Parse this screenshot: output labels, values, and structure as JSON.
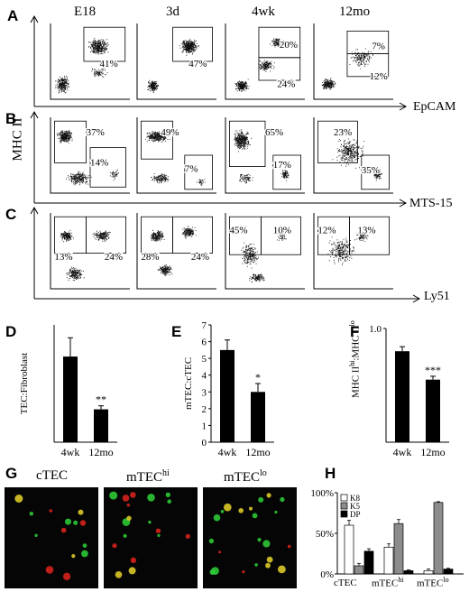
{
  "flow": {
    "column_headers": [
      "E18",
      "3d",
      "4wk",
      "12mo"
    ],
    "y_axis_label": "MHC II",
    "rows": [
      {
        "panel": "A",
        "x_axis_label": "EpCAM",
        "gates": [
          [
            "41%"
          ],
          [
            "47%"
          ],
          [
            "20%",
            "24%"
          ],
          [
            "7%",
            "12%"
          ]
        ]
      },
      {
        "panel": "B",
        "x_axis_label": "MTS-15",
        "gates": [
          [
            "37%",
            "14%"
          ],
          [
            "49%",
            "7%"
          ],
          [
            "65%",
            "17%"
          ],
          [
            "23%",
            "35%"
          ]
        ]
      },
      {
        "panel": "C",
        "x_axis_label": "Ly51",
        "gates": [
          [
            "13%",
            "24%"
          ],
          [
            "28%",
            "24%"
          ],
          [
            "45%",
            "10%"
          ],
          [
            "12%",
            "13%"
          ]
        ]
      }
    ]
  },
  "chart_data": [
    {
      "panel": "D",
      "type": "bar",
      "categories": [
        "4wk",
        "12mo"
      ],
      "values": [
        3.65,
        1.4
      ],
      "errors": [
        0.8,
        0.15
      ],
      "ylabel": "TEC:Fibroblast",
      "ylim": [
        0,
        5
      ],
      "significance": [
        "",
        "**"
      ],
      "yticks": []
    },
    {
      "panel": "E",
      "type": "bar",
      "categories": [
        "4wk",
        "12mo"
      ],
      "values": [
        5.5,
        3.0
      ],
      "errors": [
        0.6,
        0.5
      ],
      "ylabel": "mTEC:cTEC",
      "ylim": [
        0,
        7
      ],
      "significance": [
        "",
        "*"
      ],
      "yticks": [
        "0",
        "1",
        "2",
        "3",
        "4",
        "5",
        "6",
        "7"
      ]
    },
    {
      "panel": "F",
      "type": "bar",
      "categories": [
        "4wk",
        "12mo"
      ],
      "values": [
        0.8,
        0.55
      ],
      "errors": [
        0.04,
        0.03
      ],
      "ylabel": "MHC IIhi:MHC IIlo",
      "ylim": [
        0,
        1.0
      ],
      "significance": [
        "",
        "***"
      ],
      "yticks": [
        "1.0"
      ]
    },
    {
      "panel": "H",
      "type": "bar",
      "categories": [
        "cTEC",
        "mTEChi",
        "mTEClo"
      ],
      "ylim": [
        0,
        100
      ],
      "yticks": [
        "0%",
        "50%",
        "100%"
      ],
      "legend": "top-left",
      "series": [
        {
          "name": "K8",
          "color": "#ffffff",
          "values": [
            60,
            33,
            4
          ],
          "errors": [
            6,
            4,
            2
          ]
        },
        {
          "name": "K5",
          "color": "#8c8c8c",
          "values": [
            10,
            62,
            88
          ],
          "errors": [
            3,
            5,
            1
          ]
        },
        {
          "name": "DP",
          "color": "#000000",
          "values": [
            28,
            4,
            6
          ],
          "errors": [
            3,
            1,
            1
          ]
        }
      ]
    }
  ],
  "micrographs": {
    "panel": "G",
    "labels": [
      "cTEC",
      "mTEC",
      "mTEC"
    ],
    "superscripts": [
      "",
      "hi",
      "lo"
    ]
  },
  "category_labels_h": [
    {
      "base": "cTEC",
      "sup": ""
    },
    {
      "base": "mTEC",
      "sup": "hi"
    },
    {
      "base": "mTEC",
      "sup": "lo"
    }
  ],
  "f_axis": {
    "base1": "MHC II",
    "sup1": "hi",
    "sep": ":MHC II",
    "sup2": "lo"
  }
}
